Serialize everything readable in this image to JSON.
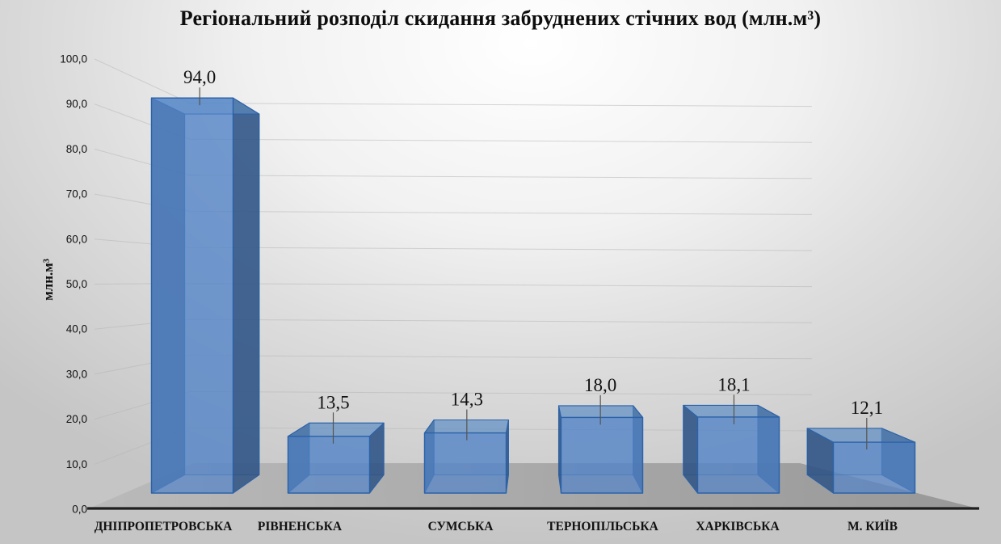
{
  "chart_data": {
    "type": "bar",
    "variant": "3d-perspective-column",
    "title": "Регіональний розподіл скидання забруднених стічних вод (млн.м³)",
    "ylabel": "млн.м³",
    "xlabel": "",
    "categories": [
      "ДНІПРОПЕТРОВСЬКА",
      "РІВНЕНСЬКА",
      "СУМСЬКА",
      "ТЕРНОПІЛЬСЬКА",
      "ХАРКІВСЬКА",
      "М. КИЇВ"
    ],
    "values": [
      94.0,
      13.5,
      14.3,
      18.0,
      18.1,
      12.1
    ],
    "value_labels": [
      "94,0",
      "13,5",
      "14,3",
      "18,0",
      "18,1",
      "12,1"
    ],
    "ylim": [
      0,
      100
    ],
    "ytick_step": 10,
    "ytick_labels": [
      "0,0",
      "10,0",
      "20,0",
      "30,0",
      "40,0",
      "50,0",
      "60,0",
      "70,0",
      "80,0",
      "90,0",
      "100,0"
    ],
    "decimal_separator": ",",
    "grid": true,
    "legend": "none",
    "colors": {
      "bar_front": "#5585c8",
      "bar_side": "#2e5284",
      "bar_top": "#5d8ec2",
      "bar_edge": "#2b62a8",
      "floor_light": "#bababa",
      "floor_dark": "#989898",
      "axis_line": "#1f1f1f",
      "grid_line": "#b7b7b7",
      "leader_line": "#55544e",
      "text": "#111111"
    }
  }
}
